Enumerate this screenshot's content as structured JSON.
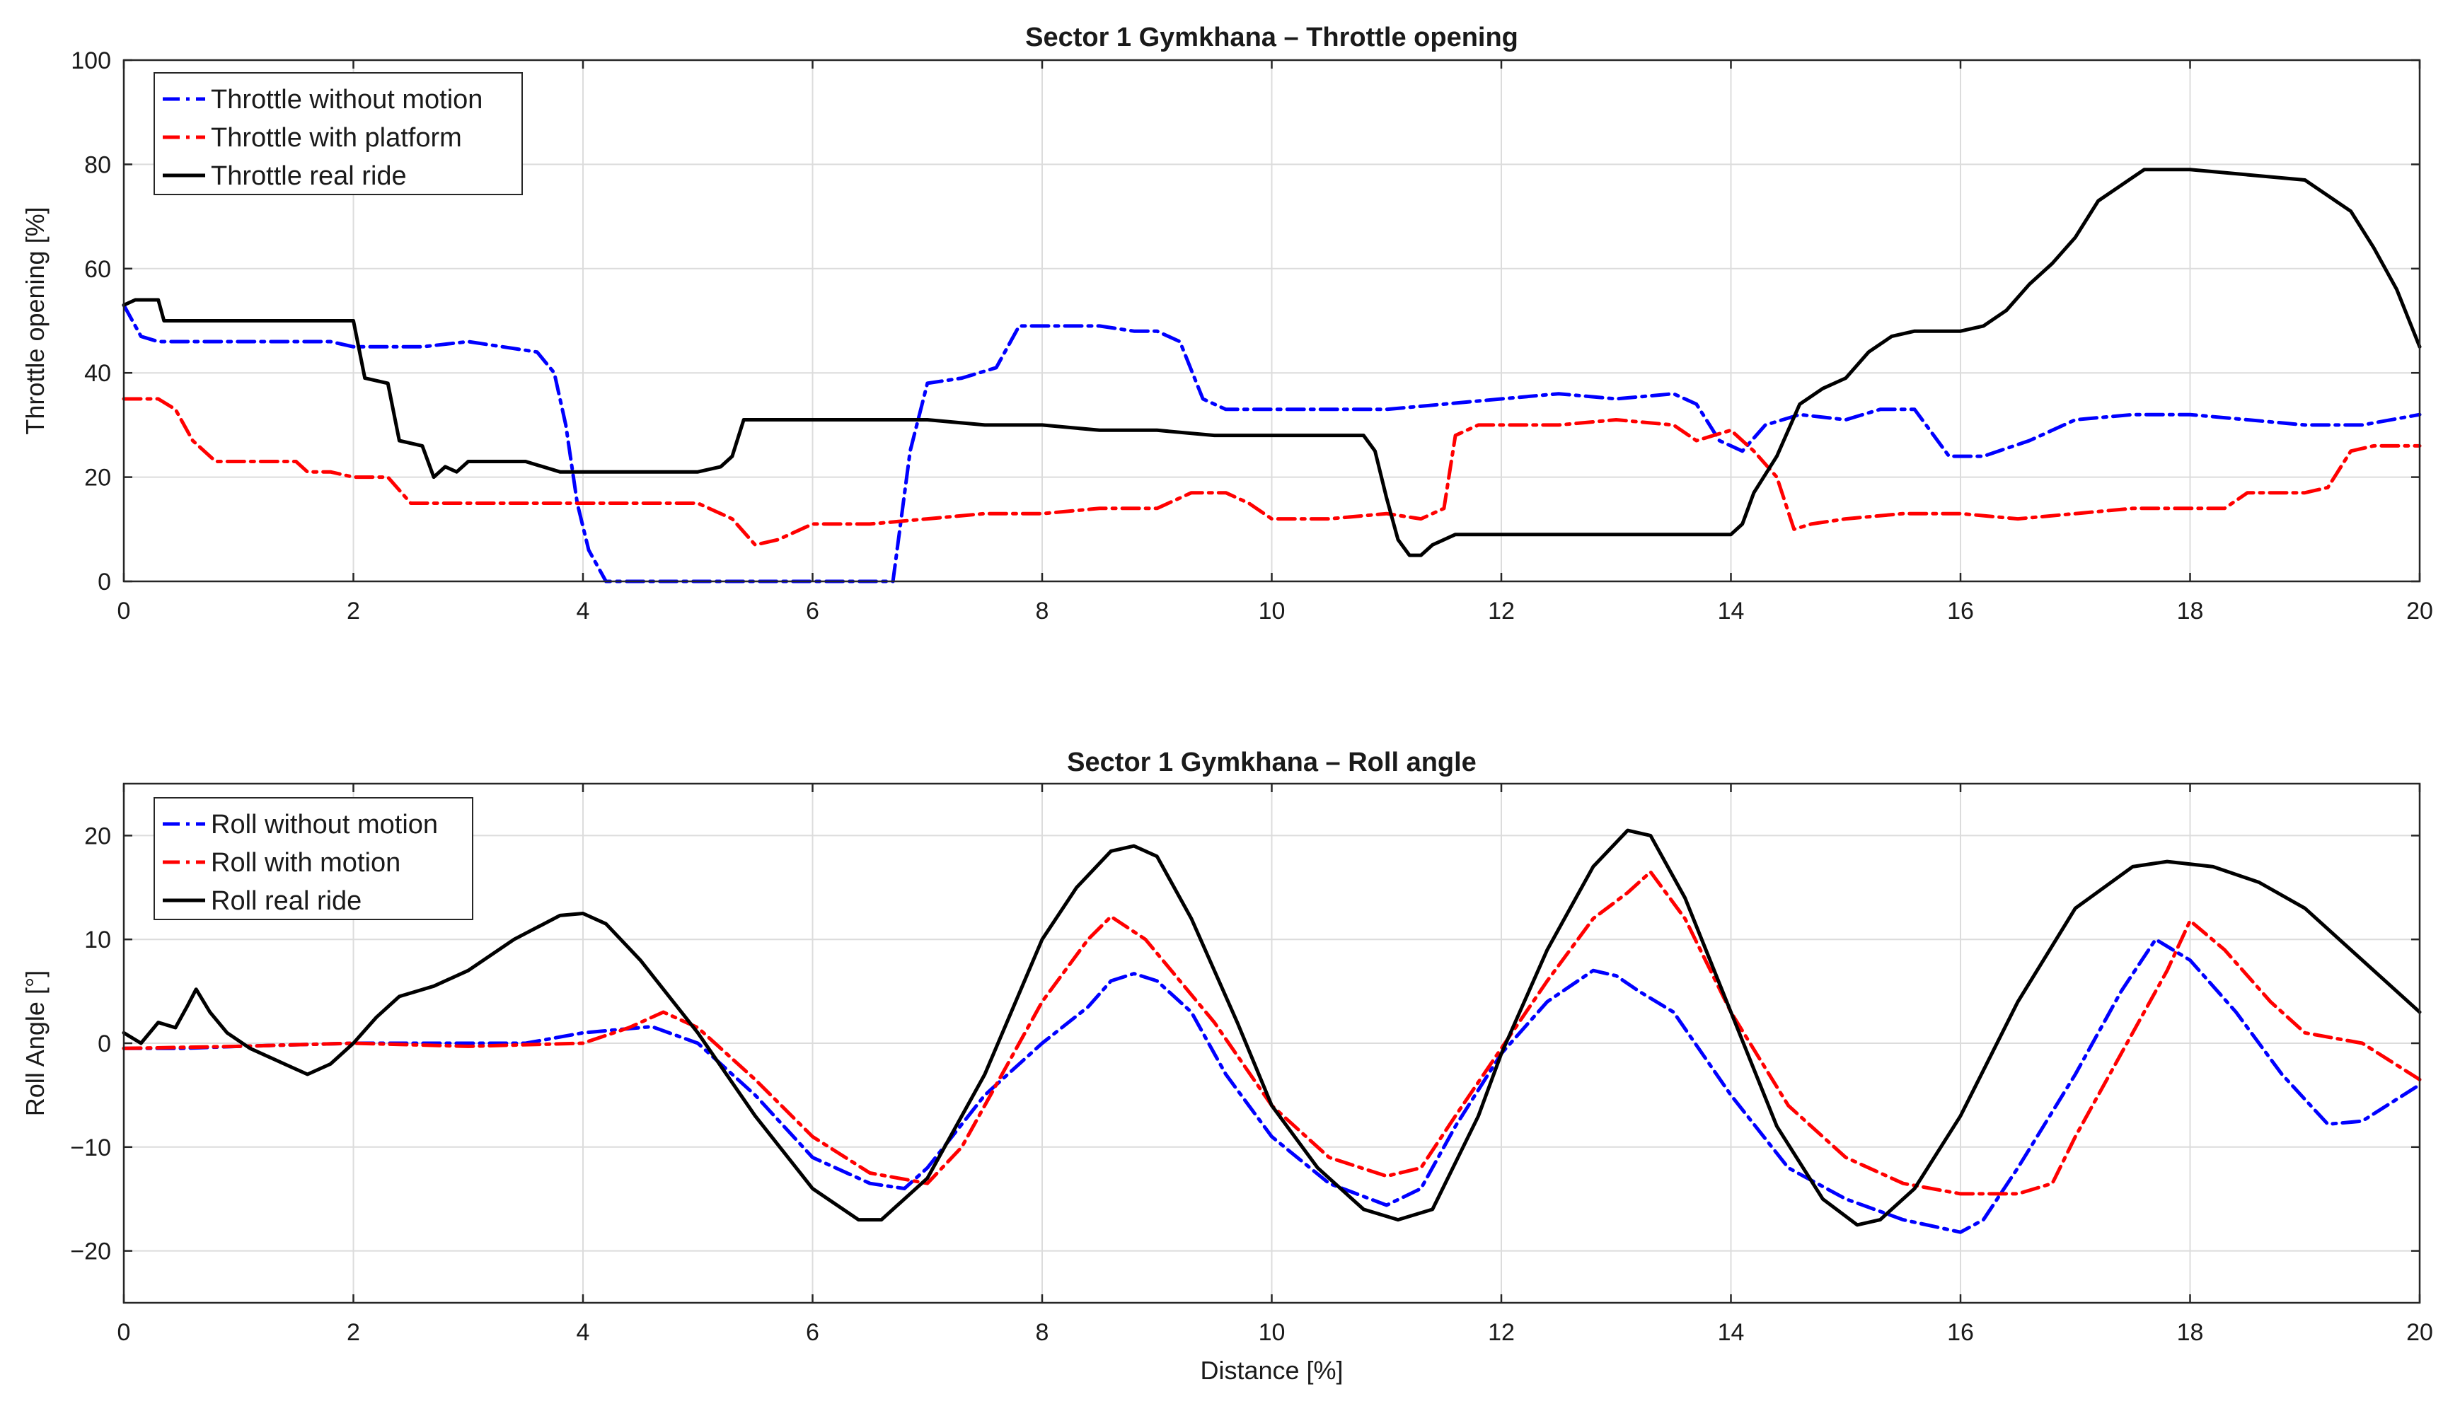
{
  "chart_data": [
    {
      "type": "line",
      "title": "Sector 1 Gymkhana - Throttle opening",
      "xlabel": "",
      "ylabel": "Throttle opening [%]",
      "xlim": [
        0,
        20
      ],
      "ylim": [
        0,
        100
      ],
      "xticks": [
        "0",
        "2",
        "4",
        "6",
        "8",
        "10",
        "12",
        "14",
        "16",
        "18",
        "20"
      ],
      "yticks": [
        "0",
        "20",
        "40",
        "60",
        "80",
        "100"
      ],
      "grid": true,
      "legend_position": "top-left",
      "series": [
        {
          "name": "Throttle without motion",
          "color": "#0000ff",
          "style": "dashdot",
          "x": [
            0,
            0.15,
            0.3,
            0.6,
            1.0,
            1.4,
            1.8,
            2.0,
            2.3,
            2.6,
            3.0,
            3.3,
            3.6,
            3.75,
            3.85,
            3.95,
            4.05,
            4.2,
            4.5,
            5.0,
            5.5,
            6.0,
            6.5,
            6.7,
            6.85,
            7.0,
            7.3,
            7.6,
            7.8,
            8.0,
            8.5,
            8.8,
            9.0,
            9.2,
            9.4,
            9.6,
            10.0,
            10.5,
            11.0,
            11.5,
            12.0,
            12.5,
            13.0,
            13.5,
            13.7,
            13.9,
            14.1,
            14.3,
            14.6,
            15.0,
            15.3,
            15.6,
            15.9,
            16.2,
            16.6,
            17.0,
            17.5,
            18.0,
            18.5,
            19.0,
            19.5,
            20.0
          ],
          "values": [
            53,
            47,
            46,
            46,
            46,
            46,
            46,
            45,
            45,
            45,
            46,
            45,
            44,
            40,
            30,
            15,
            6,
            0,
            0,
            0,
            0,
            0,
            0,
            0,
            25,
            38,
            39,
            41,
            49,
            49,
            49,
            48,
            48,
            46,
            35,
            33,
            33,
            33,
            33,
            34,
            35,
            36,
            35,
            36,
            34,
            27,
            25,
            30,
            32,
            31,
            33,
            33,
            24,
            24,
            27,
            31,
            32,
            32,
            31,
            30,
            30,
            32
          ]
        },
        {
          "name": "Throttle with platform",
          "color": "#ff0000",
          "style": "dashdot",
          "x": [
            0,
            0.3,
            0.45,
            0.6,
            0.8,
            1.0,
            1.5,
            1.6,
            1.8,
            2.0,
            2.3,
            2.5,
            3.0,
            3.5,
            4.0,
            4.5,
            5.0,
            5.3,
            5.5,
            5.7,
            6.0,
            6.5,
            7.0,
            7.5,
            8.0,
            8.5,
            9.0,
            9.3,
            9.6,
            9.8,
            10.0,
            10.5,
            11.0,
            11.3,
            11.5,
            11.6,
            11.8,
            12.0,
            12.5,
            13.0,
            13.5,
            13.7,
            14.0,
            14.2,
            14.4,
            14.55,
            14.7,
            15.0,
            15.5,
            16.0,
            16.5,
            17.0,
            17.5,
            18.0,
            18.3,
            18.5,
            19.0,
            19.2,
            19.4,
            19.6,
            20.0
          ],
          "values": [
            35,
            35,
            33,
            27,
            23,
            23,
            23,
            21,
            21,
            20,
            20,
            15,
            15,
            15,
            15,
            15,
            15,
            12,
            7,
            8,
            11,
            11,
            12,
            13,
            13,
            14,
            14,
            17,
            17,
            15,
            12,
            12,
            13,
            12,
            14,
            28,
            30,
            30,
            30,
            31,
            30,
            27,
            29,
            25,
            20,
            10,
            11,
            12,
            13,
            13,
            12,
            13,
            14,
            14,
            14,
            17,
            17,
            18,
            25,
            26,
            26
          ]
        },
        {
          "name": "Throttle real ride",
          "color": "#000000",
          "style": "solid",
          "x": [
            0,
            0.1,
            0.3,
            0.35,
            0.5,
            1.0,
            1.5,
            1.9,
            2.0,
            2.1,
            2.3,
            2.4,
            2.6,
            2.7,
            2.8,
            2.9,
            3.0,
            3.2,
            3.5,
            3.8,
            4.0,
            4.5,
            5.0,
            5.2,
            5.3,
            5.4,
            5.5,
            6.0,
            6.5,
            7.0,
            7.5,
            8.0,
            8.5,
            9.0,
            9.5,
            10.0,
            10.5,
            10.8,
            10.9,
            11.0,
            11.1,
            11.2,
            11.3,
            11.4,
            11.6,
            12.0,
            13.0,
            13.5,
            14.0,
            14.1,
            14.2,
            14.4,
            14.6,
            14.8,
            15.0,
            15.2,
            15.4,
            15.6,
            16.0,
            16.2,
            16.4,
            16.6,
            16.8,
            17.0,
            17.2,
            17.4,
            17.6,
            18.0,
            18.5,
            19.0,
            19.2,
            19.4,
            19.6,
            19.8,
            20.0
          ],
          "values": [
            53,
            54,
            54,
            50,
            50,
            50,
            50,
            50,
            50,
            39,
            38,
            27,
            26,
            20,
            22,
            21,
            23,
            23,
            23,
            21,
            21,
            21,
            21,
            22,
            24,
            31,
            31,
            31,
            31,
            31,
            30,
            30,
            29,
            29,
            28,
            28,
            28,
            28,
            25,
            16,
            8,
            5,
            5,
            7,
            9,
            9,
            9,
            9,
            9,
            11,
            17,
            24,
            34,
            37,
            39,
            44,
            47,
            48,
            48,
            49,
            52,
            57,
            61,
            66,
            73,
            76,
            79,
            79,
            78,
            77,
            74,
            71,
            64,
            56,
            45
          ]
        }
      ]
    },
    {
      "type": "line",
      "title": "Sector 1 Gymkhana - Roll angle",
      "xlabel": "Distance [%]",
      "ylabel": "Roll Angle [°]",
      "xlim": [
        0,
        20
      ],
      "ylim": [
        -25,
        25
      ],
      "xticks": [
        "0",
        "2",
        "4",
        "6",
        "8",
        "10",
        "12",
        "14",
        "16",
        "18",
        "20"
      ],
      "yticks": [
        "-20",
        "-10",
        "0",
        "10",
        "20"
      ],
      "grid": true,
      "legend_position": "top-left",
      "series": [
        {
          "name": "Roll without motion",
          "color": "#0000ff",
          "style": "dashdot",
          "x": [
            0,
            0.5,
            1.0,
            2.0,
            3.0,
            3.5,
            4.0,
            4.6,
            5.0,
            5.5,
            6.0,
            6.5,
            6.8,
            7.0,
            7.5,
            8.0,
            8.4,
            8.6,
            8.8,
            9.0,
            9.3,
            9.6,
            10.0,
            10.5,
            11.0,
            11.3,
            11.6,
            12.0,
            12.4,
            12.8,
            13.0,
            13.2,
            13.5,
            14.0,
            14.5,
            15.0,
            15.5,
            16.0,
            16.2,
            16.5,
            17.0,
            17.4,
            17.7,
            18.0,
            18.4,
            18.8,
            19.2,
            19.5,
            20.0
          ],
          "values": [
            -0.5,
            -0.5,
            -0.3,
            0,
            0,
            0,
            1.0,
            1.6,
            0,
            -5,
            -11,
            -13.5,
            -14,
            -12,
            -5,
            0,
            3.5,
            6.0,
            6.7,
            6.0,
            3.0,
            -3,
            -9,
            -13.5,
            -15.6,
            -14,
            -8,
            -1,
            4,
            7,
            6.5,
            5,
            3,
            -5,
            -12,
            -15,
            -17,
            -18.2,
            -17,
            -12,
            -3,
            5,
            10,
            8,
            3,
            -3,
            -7.8,
            -7.5,
            -4
          ]
        },
        {
          "name": "Roll with motion",
          "color": "#ff0000",
          "style": "dashdot",
          "x": [
            0,
            1.0,
            2.0,
            3.0,
            4.0,
            4.4,
            4.7,
            5.0,
            5.5,
            6.0,
            6.5,
            7.0,
            7.3,
            7.7,
            8.0,
            8.4,
            8.6,
            8.9,
            9.2,
            9.5,
            10.0,
            10.5,
            11.0,
            11.3,
            11.6,
            12.0,
            12.4,
            12.8,
            13.1,
            13.3,
            13.6,
            14.0,
            14.5,
            15.0,
            15.5,
            16.0,
            16.5,
            16.8,
            17.0,
            17.4,
            17.8,
            18.0,
            18.3,
            18.7,
            19.0,
            19.5,
            20.0
          ],
          "values": [
            -0.5,
            -0.3,
            0,
            -0.3,
            0,
            1.5,
            3.0,
            1.5,
            -3.5,
            -9,
            -12.5,
            -13.5,
            -10,
            -2,
            4,
            10,
            12.2,
            10,
            6,
            2,
            -6,
            -11,
            -12.8,
            -12,
            -7,
            -0.5,
            6,
            12,
            14.5,
            16.5,
            12,
            3,
            -6,
            -11,
            -13.5,
            -14.5,
            -14.5,
            -13.5,
            -9,
            -1,
            7,
            11.8,
            9,
            4,
            1,
            0,
            -3.5
          ]
        },
        {
          "name": "Roll real ride",
          "color": "#000000",
          "style": "solid",
          "x": [
            0,
            0.15,
            0.3,
            0.45,
            0.55,
            0.63,
            0.75,
            0.9,
            1.1,
            1.4,
            1.6,
            1.8,
            2.0,
            2.2,
            2.4,
            2.7,
            3.0,
            3.4,
            3.8,
            4.0,
            4.2,
            4.5,
            5.0,
            5.5,
            6.0,
            6.4,
            6.6,
            7.0,
            7.5,
            8.0,
            8.3,
            8.6,
            8.8,
            9.0,
            9.3,
            9.7,
            10.0,
            10.4,
            10.8,
            11.1,
            11.4,
            11.8,
            12.0,
            12.4,
            12.8,
            13.1,
            13.3,
            13.6,
            14.0,
            14.4,
            14.8,
            15.1,
            15.3,
            15.6,
            16.0,
            16.5,
            17.0,
            17.5,
            17.8,
            18.2,
            18.6,
            19.0,
            19.5,
            20.0
          ],
          "values": [
            1,
            0,
            2,
            1.5,
            3.5,
            5.2,
            3,
            1,
            -0.5,
            -2,
            -3,
            -2,
            0,
            2.5,
            4.5,
            5.5,
            7,
            10,
            12.3,
            12.5,
            11.5,
            8,
            1,
            -7,
            -14,
            -17,
            -17,
            -13,
            -3,
            10,
            15,
            18.5,
            19,
            18,
            12,
            2,
            -6,
            -12,
            -16,
            -17,
            -16,
            -7,
            -1,
            9,
            17,
            20.5,
            20,
            14,
            3,
            -8,
            -15,
            -17.5,
            -17,
            -14,
            -7,
            4,
            13,
            17,
            17.5,
            17,
            15.5,
            13,
            8,
            3
          ]
        }
      ]
    }
  ]
}
